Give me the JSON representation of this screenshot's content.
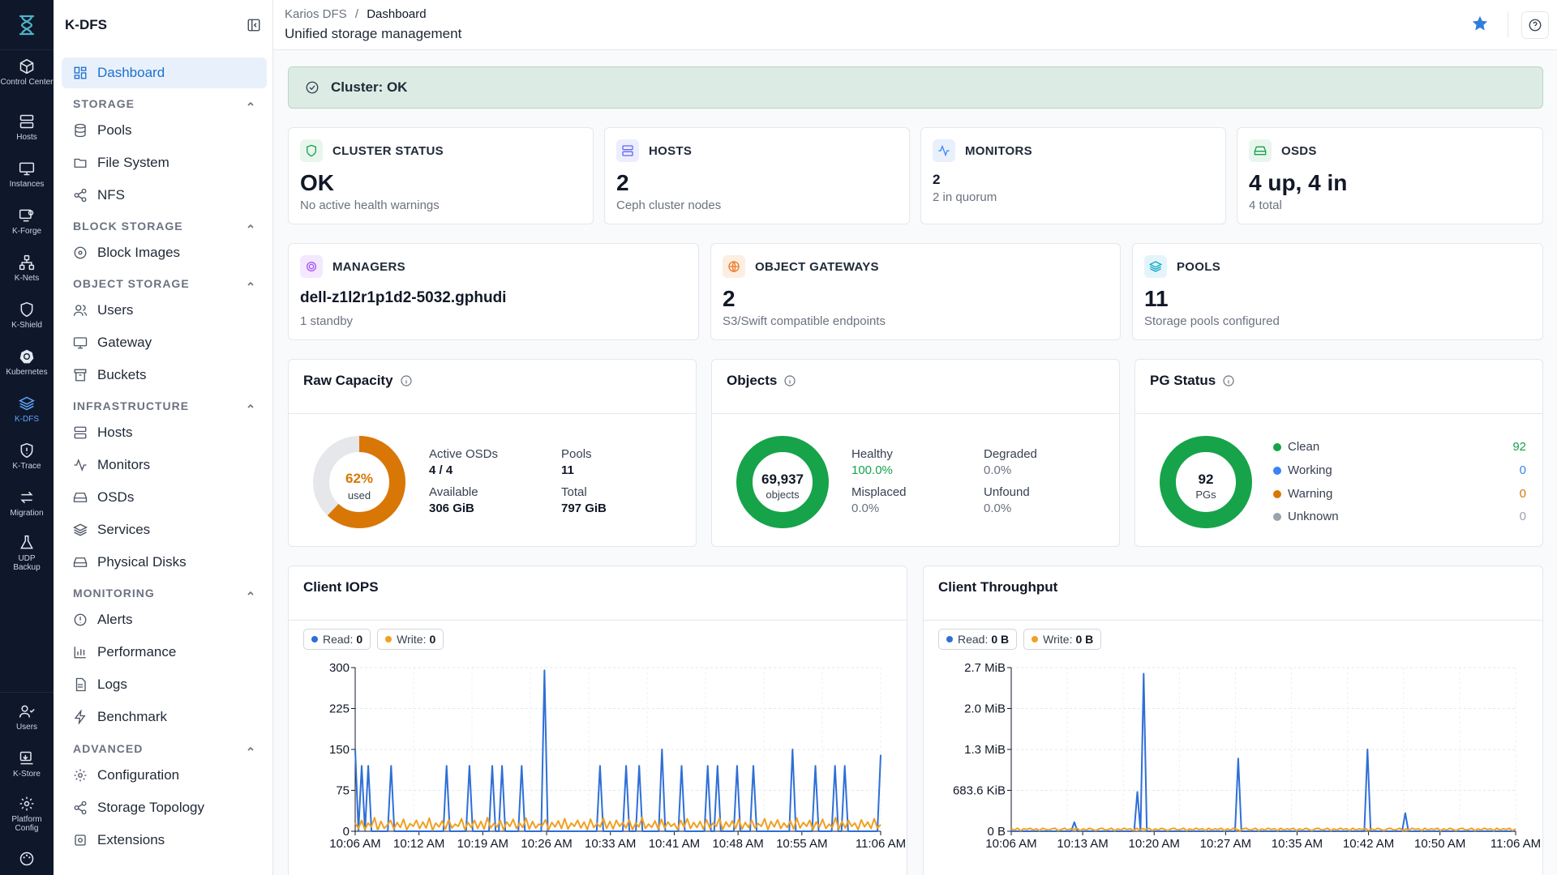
{
  "rail": {
    "items": [
      {
        "label": "Control Center",
        "icon": "cube-icon"
      },
      {
        "label": "Hosts",
        "icon": "server-icon"
      },
      {
        "label": "Instances",
        "icon": "monitor-icon"
      },
      {
        "label": "K-Forge",
        "icon": "forge-icon"
      },
      {
        "label": "K-Nets",
        "icon": "network-icon"
      },
      {
        "label": "K-Shield",
        "icon": "shield-icon"
      },
      {
        "label": "Kubernetes",
        "icon": "kubernetes-icon"
      },
      {
        "label": "K-DFS",
        "icon": "layers-icon"
      },
      {
        "label": "K-Trace",
        "icon": "trace-icon"
      },
      {
        "label": "Migration",
        "icon": "arrows-icon"
      },
      {
        "label": "UDP Backup",
        "icon": "flask-icon"
      }
    ],
    "bottom": [
      {
        "label": "Users",
        "icon": "users-icon"
      },
      {
        "label": "K-Store",
        "icon": "store-icon"
      },
      {
        "label": "Platform Config",
        "icon": "gear-icon"
      }
    ]
  },
  "sidebar": {
    "title": "K-DFS",
    "dashboard": "Dashboard",
    "sections": [
      {
        "title": "STORAGE",
        "items": [
          "Pools",
          "File System",
          "NFS"
        ]
      },
      {
        "title": "BLOCK STORAGE",
        "items": [
          "Block Images"
        ]
      },
      {
        "title": "OBJECT STORAGE",
        "items": [
          "Users",
          "Gateway",
          "Buckets"
        ]
      },
      {
        "title": "INFRASTRUCTURE",
        "items": [
          "Hosts",
          "Monitors",
          "OSDs",
          "Services",
          "Physical Disks"
        ]
      },
      {
        "title": "MONITORING",
        "items": [
          "Alerts",
          "Performance",
          "Logs",
          "Benchmark"
        ]
      },
      {
        "title": "ADVANCED",
        "items": [
          "Configuration",
          "Storage Topology",
          "Extensions"
        ]
      }
    ]
  },
  "header": {
    "crumb_root": "Karios DFS",
    "crumb_sep": "/",
    "crumb_current": "Dashboard",
    "subtitle": "Unified storage management"
  },
  "banner": {
    "text": "Cluster: OK"
  },
  "stats": {
    "cluster_status": {
      "title": "CLUSTER STATUS",
      "value": "OK",
      "sub": "No active health warnings"
    },
    "hosts": {
      "title": "HOSTS",
      "value": "2",
      "sub": "Ceph cluster nodes"
    },
    "monitors": {
      "title": "MONITORS",
      "value": "2",
      "sub": "2 in quorum"
    },
    "osds": {
      "title": "OSDS",
      "value": "4 up, 4 in",
      "sub": "4 total"
    },
    "managers": {
      "title": "MANAGERS",
      "value": "dell-z1l2r1p1d2-5032.gphudi",
      "sub": "1 standby"
    },
    "gateways": {
      "title": "OBJECT GATEWAYS",
      "value": "2",
      "sub": "S3/Swift compatible endpoints"
    },
    "pools": {
      "title": "POOLS",
      "value": "11",
      "sub": "Storage pools configured"
    }
  },
  "raw_capacity": {
    "title": "Raw Capacity",
    "used_pct": 0.62,
    "pct_label": "62%",
    "used_label": "used",
    "active_osds_label": "Active OSDs",
    "active_osds": "4 / 4",
    "pools_label": "Pools",
    "pools": "11",
    "available_label": "Available",
    "available": "306 GiB",
    "total_label": "Total",
    "total": "797 GiB"
  },
  "objects": {
    "title": "Objects",
    "count": "69,937",
    "unit": "objects",
    "healthy_label": "Healthy",
    "healthy": "100.0%",
    "degraded_label": "Degraded",
    "degraded": "0.0%",
    "misplaced_label": "Misplaced",
    "misplaced": "0.0%",
    "unfound_label": "Unfound",
    "unfound": "0.0%"
  },
  "pg_status": {
    "title": "PG Status",
    "count": "92",
    "unit": "PGs",
    "rows": [
      {
        "label": "Clean",
        "value": "92",
        "color": "#16a34a"
      },
      {
        "label": "Working",
        "value": "0",
        "color": "#3b82f6"
      },
      {
        "label": "Warning",
        "value": "0",
        "color": "#d97706"
      },
      {
        "label": "Unknown",
        "value": "0",
        "color": "#9ca3af"
      }
    ]
  },
  "iops": {
    "title": "Client IOPS",
    "read_label": "Read:",
    "read": "0",
    "write_label": "Write:",
    "write": "0"
  },
  "throughput": {
    "title": "Client Throughput",
    "read_label": "Read:",
    "read": "0 B",
    "write_label": "Write:",
    "write": "0 B"
  },
  "chart_data": [
    {
      "type": "line",
      "title": "Client IOPS",
      "ylim": [
        0,
        300
      ],
      "yticks": [
        "0",
        "75",
        "150",
        "225",
        "300"
      ],
      "xticks": [
        "10:06 AM",
        "10:12 AM",
        "10:19 AM",
        "10:26 AM",
        "10:33 AM",
        "10:41 AM",
        "10:48 AM",
        "10:55 AM",
        "11:06 AM"
      ],
      "grid": true,
      "series": [
        {
          "name": "Read",
          "color": "#2f6fd6",
          "values": [
            150,
            0,
            120,
            0,
            120,
            0,
            0,
            0,
            0,
            0,
            0,
            120,
            0,
            0,
            0,
            0,
            0,
            0,
            0,
            0,
            0,
            0,
            0,
            0,
            0,
            0,
            0,
            0,
            120,
            0,
            0,
            0,
            0,
            0,
            0,
            120,
            0,
            0,
            0,
            0,
            0,
            0,
            120,
            0,
            0,
            120,
            0,
            0,
            0,
            0,
            0,
            120,
            0,
            0,
            0,
            0,
            0,
            0,
            295,
            0,
            0,
            0,
            0,
            0,
            0,
            0,
            0,
            0,
            0,
            0,
            0,
            0,
            0,
            0,
            0,
            120,
            0,
            0,
            0,
            0,
            0,
            0,
            0,
            120,
            0,
            0,
            0,
            120,
            0,
            0,
            0,
            0,
            0,
            0,
            150,
            0,
            0,
            0,
            0,
            0,
            120,
            0,
            0,
            0,
            0,
            0,
            0,
            0,
            120,
            0,
            0,
            120,
            0,
            0,
            0,
            0,
            0,
            120,
            0,
            0,
            0,
            0,
            120,
            0,
            0,
            0,
            0,
            0,
            0,
            0,
            0,
            0,
            0,
            0,
            150,
            0,
            0,
            0,
            0,
            0,
            0,
            120,
            0,
            0,
            0,
            0,
            0,
            120,
            0,
            0,
            120,
            0,
            0,
            0,
            0,
            0,
            0,
            0,
            0,
            0,
            0,
            140
          ]
        },
        {
          "name": "Write",
          "color": "#f0a023",
          "values": [
            15,
            5,
            20,
            3,
            15,
            8,
            25,
            2,
            18,
            5,
            12,
            20,
            4,
            16,
            7,
            22,
            3,
            14,
            9,
            20,
            5,
            17,
            6,
            24,
            2,
            15,
            8,
            19,
            4,
            21,
            6,
            13,
            9,
            23,
            3,
            16,
            7,
            20,
            5,
            18,
            4,
            25,
            6,
            14,
            8,
            20,
            3,
            17,
            9,
            22,
            5,
            15,
            7,
            24,
            4,
            18,
            6,
            13,
            10,
            21,
            3,
            16,
            8,
            19,
            5,
            23,
            4,
            15,
            9,
            20,
            6,
            17,
            3,
            22,
            7,
            14,
            8,
            24,
            5,
            18,
            4,
            20,
            9,
            16,
            6,
            21,
            3,
            15,
            8,
            25,
            5,
            13,
            7,
            19,
            4,
            22,
            6,
            17,
            9,
            14,
            3,
            20,
            8,
            23,
            5,
            16,
            7,
            18,
            4,
            21,
            6,
            15,
            9,
            24,
            3,
            17,
            8,
            19,
            5,
            22,
            4,
            16,
            7,
            20,
            6,
            14,
            9,
            23,
            3,
            18,
            8,
            21,
            5,
            15,
            7,
            19,
            4,
            24,
            6,
            16,
            9,
            20,
            3,
            17,
            8,
            22,
            5,
            13,
            7,
            25,
            4,
            18,
            6,
            20,
            9,
            15,
            3,
            21,
            8,
            17,
            5,
            23,
            6,
            12
          ]
        }
      ]
    },
    {
      "type": "line",
      "title": "Client Throughput",
      "ylim": [
        0,
        2.7
      ],
      "yunit": "MiB",
      "yticks": [
        "0 B",
        "683.6 KiB",
        "1.3 MiB",
        "2.0 MiB",
        "2.7 MiB"
      ],
      "xticks": [
        "10:06 AM",
        "10:13 AM",
        "10:20 AM",
        "10:27 AM",
        "10:35 AM",
        "10:42 AM",
        "10:50 AM",
        "11:06 AM"
      ],
      "grid": true,
      "series": [
        {
          "name": "Read",
          "color": "#2f6fd6",
          "values": [
            0,
            0,
            0,
            0,
            0,
            0,
            0,
            0,
            0,
            0,
            0,
            0,
            0,
            0,
            0,
            0,
            0,
            0,
            0,
            0,
            0.15,
            0,
            0,
            0,
            0,
            0,
            0,
            0,
            0,
            0,
            0,
            0,
            0,
            0,
            0,
            0,
            0,
            0,
            0,
            0,
            0.65,
            0,
            2.6,
            0,
            0,
            0,
            0,
            0,
            0,
            0,
            0,
            0,
            0,
            0,
            0,
            0,
            0,
            0,
            0,
            0,
            0,
            0,
            0,
            0,
            0,
            0,
            0,
            0,
            0,
            0,
            0,
            0,
            1.2,
            0,
            0,
            0,
            0,
            0,
            0,
            0,
            0,
            0,
            0,
            0,
            0,
            0,
            0,
            0,
            0,
            0,
            0,
            0,
            0,
            0,
            0,
            0,
            0,
            0,
            0,
            0,
            0,
            0,
            0,
            0,
            0,
            0,
            0,
            0,
            0,
            0,
            0,
            0,
            0,
            1.35,
            0,
            0,
            0,
            0,
            0,
            0,
            0,
            0,
            0,
            0,
            0,
            0.3,
            0,
            0,
            0,
            0,
            0,
            0,
            0,
            0,
            0,
            0,
            0,
            0,
            0,
            0,
            0,
            0,
            0,
            0,
            0,
            0,
            0,
            0,
            0,
            0,
            0,
            0,
            0,
            0,
            0,
            0,
            0,
            0,
            0,
            0,
            0
          ]
        },
        {
          "name": "Write",
          "color": "#f0a023",
          "values": [
            0.04,
            0.02,
            0.05,
            0.01,
            0.04,
            0.03,
            0.05,
            0.02,
            0.04,
            0.01,
            0.05,
            0.03,
            0.02,
            0.04,
            0.05,
            0.01,
            0.03,
            0.05,
            0.02,
            0.04,
            0.03,
            0.05,
            0.01,
            0.04,
            0.02,
            0.05,
            0.03,
            0.01,
            0.04,
            0.05,
            0.02,
            0.03,
            0.05,
            0.01,
            0.04,
            0.02,
            0.05,
            0.03,
            0.04,
            0.01,
            0.05,
            0.02,
            0.04,
            0.03,
            0.05,
            0.01,
            0.04,
            0.02,
            0.05,
            0.03,
            0.01,
            0.04,
            0.05,
            0.02,
            0.03,
            0.05,
            0.01,
            0.04,
            0.02,
            0.05,
            0.03,
            0.04,
            0.01,
            0.05,
            0.02,
            0.04,
            0.03,
            0.05,
            0.01,
            0.04,
            0.02,
            0.05,
            0.03,
            0.01,
            0.04,
            0.05,
            0.02,
            0.03,
            0.05,
            0.01,
            0.04,
            0.02,
            0.05,
            0.03,
            0.04,
            0.01,
            0.05,
            0.02,
            0.04,
            0.03,
            0.05,
            0.01,
            0.04,
            0.02,
            0.05,
            0.03,
            0.01,
            0.04,
            0.05,
            0.02,
            0.03,
            0.05,
            0.01,
            0.04,
            0.02,
            0.05,
            0.03,
            0.04,
            0.01,
            0.05,
            0.02,
            0.04,
            0.03,
            0.05,
            0.01,
            0.04,
            0.02,
            0.05,
            0.03,
            0.01,
            0.04,
            0.05,
            0.02,
            0.03,
            0.05,
            0.01,
            0.04,
            0.02,
            0.05,
            0.03,
            0.04,
            0.01,
            0.05,
            0.02,
            0.04,
            0.03,
            0.05,
            0.01,
            0.04,
            0.02,
            0.05,
            0.03,
            0.01,
            0.04,
            0.05,
            0.02,
            0.03,
            0.05,
            0.01,
            0.04,
            0.02,
            0.05,
            0.03,
            0.04,
            0.01,
            0.05,
            0.02,
            0.04,
            0.03,
            0.05,
            0.01,
            0.04
          ]
        }
      ]
    }
  ]
}
